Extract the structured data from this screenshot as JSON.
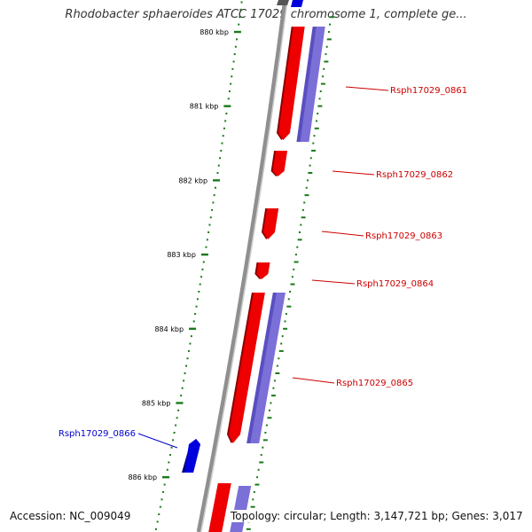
{
  "header": {
    "title": "Rhodobacter sphaeroides ATCC 17029 chromosome 1, complete ge..."
  },
  "footer": {
    "accession": "Accession: NC_009049",
    "summary": "Topology: circular; Length: 3,147,721 bp; Genes: 3,017"
  },
  "colors": {
    "forward_cds": "#ee0000",
    "forward_cds_shadow": "#8a0000",
    "reverse_cds": "#0000dd",
    "cds_strip": "#7b6fd8",
    "tick": "#1a7a1a",
    "backbone": "#8f8f8f",
    "label_forward": "#cc0000",
    "label_reverse": "#0000cc"
  },
  "ruler": {
    "ticks": [
      {
        "label": "880 kbp",
        "kbp": 880
      },
      {
        "label": "881 kbp",
        "kbp": 881
      },
      {
        "label": "882 kbp",
        "kbp": 882
      },
      {
        "label": "883 kbp",
        "kbp": 883
      },
      {
        "label": "884 kbp",
        "kbp": 884
      },
      {
        "label": "885 kbp",
        "kbp": 885
      },
      {
        "label": "886 kbp",
        "kbp": 886
      }
    ]
  },
  "genes": [
    {
      "name": "Rsph17029_0861",
      "strand": "+"
    },
    {
      "name": "Rsph17029_0862",
      "strand": "+"
    },
    {
      "name": "Rsph17029_0863",
      "strand": "+"
    },
    {
      "name": "Rsph17029_0864",
      "strand": "+"
    },
    {
      "name": "Rsph17029_0865",
      "strand": "+"
    },
    {
      "name": "Rsph17029_0866",
      "strand": "-"
    }
  ]
}
